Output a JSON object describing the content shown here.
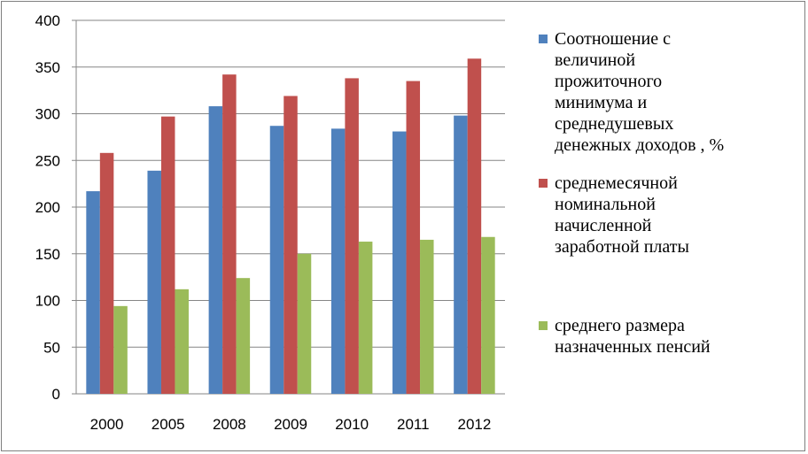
{
  "chart_data": {
    "type": "bar",
    "categories": [
      "2000",
      "2005",
      "2008",
      "2009",
      "2010",
      "2011",
      "2012"
    ],
    "series": [
      {
        "name": "Соотношение с величиной прожиточного минимума и среднедушевых денежных доходов , %",
        "color": "#4F81BD",
        "values": [
          217,
          239,
          308,
          287,
          284,
          281,
          298
        ]
      },
      {
        "name": "среднемесячной номинальной начисленной заработной платы",
        "color": "#C0504D",
        "values": [
          258,
          297,
          342,
          319,
          338,
          335,
          359
        ]
      },
      {
        "name": "среднего размера назначенных пенсий",
        "color": "#9BBB59",
        "values": [
          94,
          112,
          124,
          150,
          163,
          165,
          168
        ]
      }
    ],
    "ylim": [
      0,
      400
    ],
    "yticks": [
      "0",
      "50",
      "100",
      "150",
      "200",
      "250",
      "300",
      "350",
      "400"
    ],
    "xlabel": "",
    "ylabel": "",
    "grid": "horizontal",
    "legend_position": "right"
  },
  "legend": [
    {
      "label": "Соотношение с\nвеличиной\nпрожиточного\nминимума и\nсреднедушевых\nденежных доходов , %",
      "color": "#4F81BD"
    },
    {
      "label": "среднемесячной\nноминальной\nначисленной\nзаработной платы",
      "color": "#C0504D"
    },
    {
      "label": "среднего размера\nназначенных пенсий",
      "color": "#9BBB59"
    }
  ]
}
